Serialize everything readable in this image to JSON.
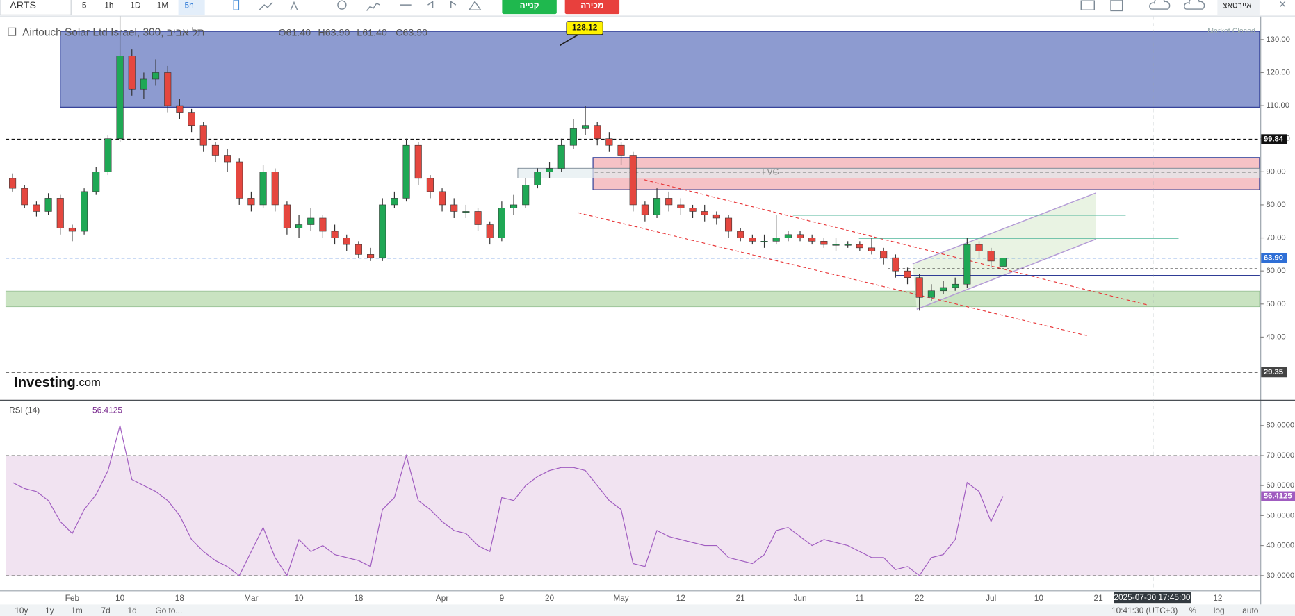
{
  "toolbar": {
    "symbol": "ARTS",
    "intervals": [
      "5",
      "1h",
      "1D",
      "1M",
      "5h"
    ],
    "buy": "קנייה",
    "sell": "מכירה",
    "account": "איירטאצ"
  },
  "chart_data": [
    {
      "type": "candlestick",
      "title": "Airtouch Solar Ltd Israel, 300, תל אביב",
      "ohlc_legend": [
        "O61.40",
        "H63.90",
        "L61.40",
        "C63.90"
      ],
      "status": "Market Closed",
      "watermark": [
        "Investing",
        ".com"
      ],
      "categories": [
        null,
        null,
        null,
        null,
        null,
        "Feb",
        null,
        null,
        null,
        "10",
        null,
        null,
        null,
        null,
        "18",
        null,
        null,
        null,
        null,
        null,
        "Mar",
        null,
        null,
        null,
        "10",
        null,
        null,
        null,
        null,
        "18",
        null,
        null,
        null,
        null,
        null,
        null,
        "Apr",
        null,
        null,
        null,
        null,
        "9",
        null,
        null,
        null,
        "20",
        null,
        null,
        null,
        null,
        null,
        "May",
        null,
        null,
        null,
        null,
        "12",
        null,
        null,
        null,
        null,
        "21",
        null,
        null,
        null,
        null,
        "Jun",
        null,
        null,
        null,
        null,
        "11",
        null,
        null,
        null,
        null,
        "22",
        null,
        null,
        null,
        null,
        null,
        "Jul",
        null,
        null,
        null,
        "10",
        null,
        null,
        null,
        null,
        "21",
        null,
        null,
        null,
        null,
        null,
        null,
        null,
        null,
        null,
        "12",
        null,
        null,
        null
      ],
      "open": [
        88,
        85,
        80,
        78,
        82,
        73,
        72,
        84,
        90,
        100,
        125,
        115,
        118,
        120,
        110,
        108,
        104,
        98,
        95,
        93,
        82,
        80,
        90,
        80,
        73,
        74,
        76,
        72,
        70,
        68,
        65,
        64,
        80,
        82,
        98,
        88,
        84,
        80,
        78,
        78,
        74,
        70,
        79,
        80,
        86,
        90,
        91,
        98,
        103,
        104,
        100,
        98,
        95,
        80,
        77,
        82,
        80,
        79,
        78,
        77,
        76,
        72,
        70,
        69,
        69,
        70,
        71,
        70,
        69,
        68,
        68,
        68,
        67,
        66,
        64,
        60,
        58,
        52,
        54,
        55,
        56,
        68,
        66,
        61.4,
        null,
        null,
        null,
        null,
        null,
        null,
        null,
        null,
        null,
        null,
        null,
        null,
        null,
        null,
        null,
        null,
        null,
        null,
        null,
        null,
        null
      ],
      "high": [
        89.5,
        86,
        81,
        83.5,
        83,
        74,
        85,
        91.5,
        101,
        137,
        127,
        120,
        124,
        122,
        112,
        109,
        105,
        99,
        97,
        94,
        84,
        92,
        91,
        81,
        77,
        79,
        77,
        74,
        71,
        69,
        67,
        82,
        84,
        100,
        99,
        89,
        85,
        82,
        80,
        79,
        75,
        81,
        83,
        88,
        91,
        93,
        100,
        106,
        110,
        105,
        102,
        99,
        96,
        81,
        85,
        84,
        82,
        80,
        80,
        78,
        77,
        73,
        71,
        71,
        77,
        72,
        72,
        71,
        70,
        70,
        69,
        69,
        70,
        67,
        65,
        61,
        59,
        56,
        57,
        58,
        70,
        69,
        67,
        63.9,
        null,
        null,
        null,
        null,
        null,
        null,
        null,
        null,
        null,
        null,
        null,
        null,
        null,
        null,
        null,
        null,
        null,
        null,
        null,
        null,
        null
      ],
      "low": [
        84,
        79,
        76.5,
        77,
        71,
        69,
        71,
        83,
        89,
        99,
        113,
        112,
        116,
        108,
        106,
        102,
        96,
        93,
        90,
        80,
        78,
        79,
        78,
        71,
        70,
        72,
        70,
        68,
        66,
        64,
        63,
        63,
        79,
        81,
        86,
        82,
        78,
        76,
        76,
        72,
        68,
        69,
        77,
        79,
        85,
        88,
        90,
        97,
        101,
        98,
        96,
        92,
        78,
        75,
        76,
        78,
        77,
        76,
        75,
        74,
        70,
        69,
        68,
        67,
        68,
        69,
        69,
        68,
        67,
        66,
        67,
        66,
        65,
        62,
        58,
        56,
        48,
        51,
        53,
        54,
        55,
        64,
        61,
        61.4,
        null,
        null,
        null,
        null,
        null,
        null,
        null,
        null,
        null,
        null,
        null,
        null,
        null,
        null,
        null,
        null,
        null,
        null,
        null,
        null,
        null
      ],
      "close": [
        85,
        80,
        78,
        82,
        73,
        72,
        84,
        90,
        100,
        125,
        115,
        118,
        120,
        110,
        108,
        104,
        98,
        95,
        93,
        82,
        80,
        90,
        80,
        73,
        74,
        76,
        72,
        70,
        68,
        65,
        64,
        80,
        82,
        98,
        88,
        84,
        80,
        78,
        78,
        74,
        70,
        79,
        80,
        86,
        90,
        91,
        98,
        103,
        104,
        100,
        98,
        95,
        80,
        77,
        82,
        80,
        79,
        78,
        77,
        76,
        72,
        70,
        69,
        69,
        70,
        71,
        70,
        69,
        68,
        68,
        68,
        67,
        66,
        64,
        60,
        58,
        52,
        54,
        55,
        56,
        68,
        66,
        63,
        63.9,
        null,
        null,
        null,
        null,
        null,
        null,
        null,
        null,
        null,
        null,
        null,
        null,
        null,
        null,
        null,
        null,
        null,
        null,
        null,
        null,
        null
      ],
      "up_color": "#1fa855",
      "down_color": "#e5473f",
      "ylim": [
        21,
        135.7
      ],
      "yticks": [
        {
          "value": 40,
          "label": "40.00"
        },
        {
          "value": 50,
          "label": "50.00"
        },
        {
          "value": 60,
          "label": "60.00"
        },
        {
          "value": 70,
          "label": "70.00"
        },
        {
          "value": 80,
          "label": "80.00"
        },
        {
          "value": 90,
          "label": "90.00"
        },
        {
          "value": 100,
          "label": "100.00"
        },
        {
          "value": 110,
          "label": "110.00"
        },
        {
          "value": 120,
          "label": "120.00"
        },
        {
          "value": 130,
          "label": "130.00"
        }
      ],
      "price_lines": [
        {
          "value": 99.84,
          "label": "99.84",
          "color": "#111111"
        },
        {
          "value": 63.9,
          "label": "63.90",
          "color": "#2f6fd6"
        },
        {
          "value": 29.35,
          "label": "29.35",
          "color": "#444444"
        }
      ],
      "annotations": [
        "FVG",
        "128.12"
      ],
      "crosshair_label": "2025-07-30 17:45:00"
    },
    {
      "type": "line",
      "title": "RSI (14)",
      "color": "#a05cc0",
      "values": [
        61,
        59,
        58,
        55,
        48,
        44,
        52,
        57,
        65,
        80,
        62,
        60,
        58,
        55,
        50,
        42,
        38,
        35,
        33,
        30,
        38,
        46,
        36,
        30,
        42,
        38,
        40,
        37,
        36,
        35,
        33,
        52,
        56,
        70,
        55,
        52,
        48,
        45,
        44,
        40,
        38,
        56,
        55,
        60,
        63,
        65,
        66,
        66,
        65,
        60,
        55,
        52,
        34,
        33,
        45,
        43,
        42,
        41,
        40,
        40,
        36,
        35,
        34,
        37,
        45,
        46,
        43,
        40,
        42,
        41,
        40,
        38,
        36,
        36,
        32,
        33,
        30,
        36,
        37,
        42,
        61,
        58,
        48,
        56.4125,
        null,
        null,
        null,
        null,
        null,
        null,
        null,
        null,
        null,
        null,
        null,
        null,
        null,
        null,
        null,
        null,
        null,
        null,
        null,
        null,
        null
      ],
      "ylim": [
        25.05,
        84.95
      ],
      "yticks": [
        {
          "value": 30,
          "label": "30.0000"
        },
        {
          "value": 40,
          "label": "40.0000"
        },
        {
          "value": 50,
          "label": "50.0000"
        },
        {
          "value": 60,
          "label": "60.0000"
        },
        {
          "value": 70,
          "label": "70.0000"
        },
        {
          "value": 80,
          "label": "80.0000"
        }
      ],
      "band": [
        30,
        70
      ]
    }
  ],
  "bottom_bar": {
    "ranges": [
      "10y",
      "1y",
      "1m",
      "7d",
      "1d"
    ],
    "goto": "Go to...",
    "clock": "10:41:30 (UTC+3)",
    "options": [
      "%",
      "log",
      "auto"
    ]
  }
}
